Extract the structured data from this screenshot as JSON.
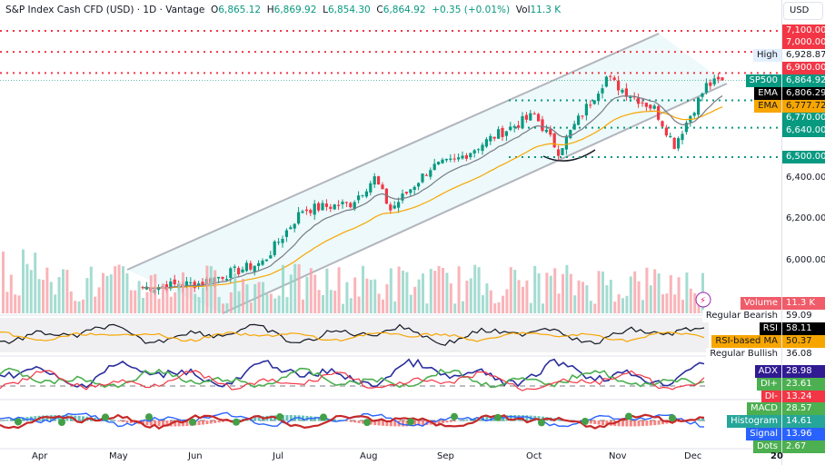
{
  "header": {
    "symbol": "S&P Index Cash CFD (USD) · 1D · Vantage",
    "o_label": "O",
    "o": "6,865.12",
    "h_label": "H",
    "h": "6,869.92",
    "l_label": "L",
    "l": "6,854.30",
    "c_label": "C",
    "c": "6,864.92",
    "change": "+0.35 (+0.01%)",
    "vol_label": "Vol",
    "vol": "11.3 K"
  },
  "axis": {
    "currency": "USD",
    "ticks": [
      "6,400.00",
      "6,200.00",
      "6,000.00"
    ]
  },
  "levels": [
    {
      "price": 7100,
      "label": "7,100.00",
      "color": "#f23645"
    },
    {
      "price": 7000,
      "label": "7,000.00",
      "color": "#f23645"
    },
    {
      "price": 6900,
      "label": "6,900.00",
      "color": "#f23645"
    },
    {
      "price": 6770,
      "label": "6,770.00",
      "color": "#089981"
    },
    {
      "price": 6640,
      "label": "6,640.00",
      "color": "#089981"
    },
    {
      "price": 6500,
      "label": "6,500.00",
      "color": "#089981"
    }
  ],
  "tags": {
    "high": {
      "name": "High",
      "value": "6,928.87"
    },
    "last": {
      "name": "SP500",
      "value": "6,864.92"
    },
    "ema1": {
      "name": "EMA",
      "value": "6,806.29"
    },
    "ema2": {
      "name": "EMA",
      "value": "6,777.72"
    },
    "volume": {
      "name": "Volume",
      "value": "11.3 K"
    },
    "rsi_bear": {
      "name": "Regular Bearish",
      "value": "59.09"
    },
    "rsi": {
      "name": "RSI",
      "value": "58.11"
    },
    "rsi_ma": {
      "name": "RSI-based MA",
      "value": "50.37"
    },
    "rsi_bull": {
      "name": "Regular Bullish",
      "value": "36.08"
    },
    "adx": {
      "name": "ADX",
      "value": "28.98"
    },
    "dip": {
      "name": "DI+",
      "value": "23.61"
    },
    "dim": {
      "name": "DI-",
      "value": "13.24"
    },
    "macd": {
      "name": "MACD",
      "value": "28.57"
    },
    "hist": {
      "name": "Histogram",
      "value": "14.61"
    },
    "signal": {
      "name": "Signal",
      "value": "13.96"
    },
    "dots": {
      "name": "Dots",
      "value": "2.67"
    }
  },
  "time_axis": [
    "Apr",
    "May",
    "Jun",
    "Jul",
    "Aug",
    "Sep",
    "Oct",
    "Nov",
    "Dec",
    "20"
  ],
  "colors": {
    "up": "#089981",
    "down": "#f23645",
    "ema_fast": "#787b86",
    "ema_slow": "#f7a600"
  },
  "price_path": [
    [
      5880,
      0
    ],
    [
      5900,
      14
    ],
    [
      6000,
      30
    ],
    [
      6250,
      40
    ],
    [
      6280,
      52
    ],
    [
      6400,
      58
    ],
    [
      6250,
      62
    ],
    [
      6450,
      72
    ],
    [
      6480,
      78
    ],
    [
      6600,
      88
    ],
    [
      6700,
      98
    ],
    [
      6530,
      104
    ],
    [
      6650,
      108
    ],
    [
      6880,
      116
    ],
    [
      6820,
      120
    ],
    [
      6730,
      128
    ],
    [
      6560,
      133
    ],
    [
      6840,
      141
    ],
    [
      6865,
      145
    ]
  ]
}
